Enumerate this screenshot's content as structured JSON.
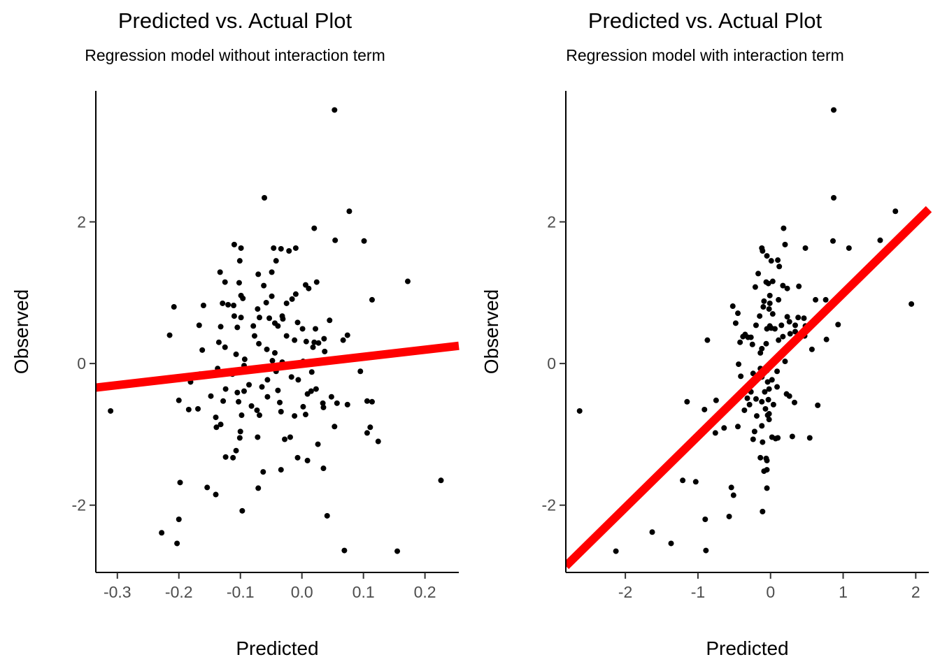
{
  "chart_data": [
    {
      "type": "scatter",
      "title": "Predicted vs. Actual Plot",
      "subtitle": "Regression model without interaction term",
      "xlabel": "Predicted",
      "ylabel": "Observed",
      "xlim": [
        -0.335,
        0.255
      ],
      "ylim": [
        -2.95,
        3.85
      ],
      "xticks": [
        {
          "value": -0.3,
          "label": "-0.3"
        },
        {
          "value": -0.2,
          "label": "-0.2"
        },
        {
          "value": -0.1,
          "label": "-0.1"
        },
        {
          "value": 0.0,
          "label": "0.0"
        },
        {
          "value": 0.1,
          "label": "0.1"
        },
        {
          "value": 0.2,
          "label": "0.2"
        }
      ],
      "yticks": [
        {
          "value": -2,
          "label": "-2"
        },
        {
          "value": 0,
          "label": "0"
        },
        {
          "value": 2,
          "label": "2"
        }
      ],
      "grid": false,
      "fit_line": {
        "x": [
          -0.335,
          0.255
        ],
        "y": [
          -0.34,
          0.25
        ],
        "color": "#ff0000"
      },
      "point_color": "#000000",
      "points": [
        [
          0.053,
          3.58
        ],
        [
          -0.061,
          2.34
        ],
        [
          0.077,
          2.15
        ],
        [
          0.02,
          1.91
        ],
        [
          0.054,
          1.74
        ],
        [
          0.101,
          1.73
        ],
        [
          -0.11,
          1.68
        ],
        [
          -0.099,
          1.63
        ],
        [
          -0.046,
          1.63
        ],
        [
          -0.021,
          1.59
        ],
        [
          -0.034,
          1.62
        ],
        [
          -0.01,
          1.63
        ],
        [
          -0.101,
          1.45
        ],
        [
          -0.049,
          1.29
        ],
        [
          -0.042,
          1.45
        ],
        [
          -0.133,
          1.29
        ],
        [
          0.172,
          1.16
        ],
        [
          -0.125,
          1.15
        ],
        [
          -0.102,
          1.14
        ],
        [
          0.024,
          1.15
        ],
        [
          0.006,
          1.11
        ],
        [
          0.011,
          1.06
        ],
        [
          -0.062,
          1.1
        ],
        [
          -0.071,
          1.26
        ],
        [
          -0.01,
          0.98
        ],
        [
          -0.099,
          0.96
        ],
        [
          -0.111,
          0.82
        ],
        [
          -0.129,
          0.85
        ],
        [
          -0.096,
          0.92
        ],
        [
          -0.049,
          0.95
        ],
        [
          -0.058,
          0.86
        ],
        [
          0.114,
          0.9
        ],
        [
          -0.016,
          0.91
        ],
        [
          -0.025,
          0.85
        ],
        [
          -0.16,
          0.82
        ],
        [
          -0.208,
          0.8
        ],
        [
          -0.12,
          0.83
        ],
        [
          -0.072,
          0.77
        ],
        [
          -0.031,
          0.63
        ],
        [
          -0.044,
          0.57
        ],
        [
          -0.11,
          0.67
        ],
        [
          -0.099,
          0.65
        ],
        [
          -0.069,
          0.65
        ],
        [
          -0.053,
          0.64
        ],
        [
          -0.032,
          0.67
        ],
        [
          -0.007,
          0.58
        ],
        [
          0.045,
          0.61
        ],
        [
          -0.167,
          0.54
        ],
        [
          -0.132,
          0.52
        ],
        [
          -0.105,
          0.51
        ],
        [
          -0.079,
          0.53
        ],
        [
          -0.039,
          0.53
        ],
        [
          0.001,
          0.49
        ],
        [
          0.022,
          0.49
        ],
        [
          -0.215,
          0.4
        ],
        [
          -0.077,
          0.39
        ],
        [
          0.074,
          0.4
        ],
        [
          0.067,
          0.33
        ],
        [
          0.036,
          0.35
        ],
        [
          0.02,
          0.3
        ],
        [
          0.027,
          0.29
        ],
        [
          0.007,
          0.31
        ],
        [
          -0.025,
          0.39
        ],
        [
          -0.012,
          0.33
        ],
        [
          -0.07,
          0.28
        ],
        [
          -0.057,
          0.2
        ],
        [
          -0.044,
          0.15
        ],
        [
          -0.135,
          0.3
        ],
        [
          -0.125,
          0.23
        ],
        [
          -0.162,
          0.19
        ],
        [
          -0.107,
          0.13
        ],
        [
          0.018,
          0.23
        ],
        [
          0.037,
          0.17
        ],
        [
          -0.093,
          0.06
        ],
        [
          -0.048,
          0.04
        ],
        [
          0.002,
          0.03
        ],
        [
          -0.032,
          0.02
        ],
        [
          -0.094,
          -0.03
        ],
        [
          -0.063,
          -0.05
        ],
        [
          -0.137,
          -0.07
        ],
        [
          0.095,
          -0.11
        ],
        [
          -0.113,
          -0.15
        ],
        [
          -0.118,
          -0.14
        ],
        [
          -0.042,
          -0.11
        ],
        [
          0.016,
          -0.12
        ],
        [
          -0.017,
          -0.19
        ],
        [
          -0.006,
          -0.23
        ],
        [
          -0.056,
          -0.23
        ],
        [
          -0.166,
          -0.15
        ],
        [
          -0.181,
          -0.26
        ],
        [
          -0.086,
          -0.3
        ],
        [
          -0.124,
          -0.36
        ],
        [
          -0.105,
          -0.41
        ],
        [
          -0.094,
          -0.39
        ],
        [
          -0.065,
          -0.33
        ],
        [
          -0.039,
          -0.38
        ],
        [
          -0.056,
          -0.47
        ],
        [
          0.015,
          -0.39
        ],
        [
          0.023,
          -0.36
        ],
        [
          0.009,
          -0.43
        ],
        [
          0.048,
          -0.47
        ],
        [
          0.034,
          -0.56
        ],
        [
          -0.148,
          -0.46
        ],
        [
          -0.128,
          -0.53
        ],
        [
          -0.103,
          -0.54
        ],
        [
          -0.082,
          -0.6
        ],
        [
          -0.036,
          -0.55
        ],
        [
          0.002,
          -0.61
        ],
        [
          0.057,
          -0.56
        ],
        [
          0.106,
          -0.53
        ],
        [
          0.114,
          -0.54
        ],
        [
          0.074,
          -0.58
        ],
        [
          0.035,
          -0.62
        ],
        [
          -0.2,
          -0.52
        ],
        [
          -0.169,
          -0.64
        ],
        [
          -0.184,
          -0.65
        ],
        [
          -0.073,
          -0.66
        ],
        [
          -0.034,
          -0.68
        ],
        [
          -0.012,
          -0.74
        ],
        [
          0.006,
          -0.72
        ],
        [
          -0.14,
          -0.76
        ],
        [
          -0.098,
          -0.73
        ],
        [
          -0.069,
          -0.73
        ],
        [
          -0.311,
          -0.67
        ],
        [
          -0.132,
          -0.86
        ],
        [
          -0.139,
          -0.9
        ],
        [
          -0.1,
          -0.96
        ],
        [
          0.053,
          -0.89
        ],
        [
          0.111,
          -0.9
        ],
        [
          0.106,
          -0.98
        ],
        [
          -0.072,
          -1.04
        ],
        [
          -0.028,
          -1.07
        ],
        [
          -0.019,
          -1.04
        ],
        [
          -0.101,
          -1.05
        ],
        [
          0.124,
          -1.1
        ],
        [
          -0.107,
          -1.23
        ],
        [
          0.026,
          -1.14
        ],
        [
          -0.124,
          -1.32
        ],
        [
          -0.112,
          -1.33
        ],
        [
          -0.007,
          -1.33
        ],
        [
          0.009,
          -1.37
        ],
        [
          -0.034,
          -1.5
        ],
        [
          -0.063,
          -1.53
        ],
        [
          0.035,
          -1.48
        ],
        [
          -0.198,
          -1.68
        ],
        [
          -0.154,
          -1.75
        ],
        [
          -0.071,
          -1.76
        ],
        [
          -0.14,
          -1.85
        ],
        [
          0.226,
          -1.65
        ],
        [
          -0.097,
          -2.08
        ],
        [
          0.041,
          -2.15
        ],
        [
          -0.2,
          -2.2
        ],
        [
          -0.228,
          -2.39
        ],
        [
          -0.203,
          -2.54
        ],
        [
          0.069,
          -2.64
        ],
        [
          0.155,
          -2.65
        ]
      ]
    },
    {
      "type": "scatter",
      "title": "Predicted vs. Actual Plot",
      "subtitle": "Regression model with interaction term",
      "xlabel": "Predicted",
      "ylabel": "Observed",
      "xlim": [
        -2.82,
        2.18
      ],
      "ylim": [
        -2.95,
        3.85
      ],
      "xticks": [
        {
          "value": -2,
          "label": "-2"
        },
        {
          "value": -1,
          "label": "-1"
        },
        {
          "value": 0,
          "label": "0"
        },
        {
          "value": 1,
          "label": "1"
        },
        {
          "value": 2,
          "label": "2"
        }
      ],
      "yticks": [
        {
          "value": -2,
          "label": "-2"
        },
        {
          "value": 0,
          "label": "0"
        },
        {
          "value": 2,
          "label": "2"
        }
      ],
      "grid": false,
      "fit_line": {
        "x": [
          -2.82,
          2.18
        ],
        "y": [
          -2.86,
          2.18
        ],
        "color": "#ff0000"
      },
      "point_color": "#000000",
      "points": [
        [
          0.87,
          3.58
        ],
        [
          0.87,
          2.34
        ],
        [
          1.72,
          2.15
        ],
        [
          0.18,
          1.91
        ],
        [
          1.51,
          1.74
        ],
        [
          0.86,
          1.73
        ],
        [
          1.08,
          1.63
        ],
        [
          0.48,
          1.63
        ],
        [
          0.2,
          1.68
        ],
        [
          -0.12,
          1.63
        ],
        [
          -0.11,
          1.59
        ],
        [
          -0.05,
          1.52
        ],
        [
          0.01,
          1.45
        ],
        [
          0.1,
          1.46
        ],
        [
          -0.17,
          1.27
        ],
        [
          0.12,
          1.37
        ],
        [
          -0.06,
          1.15
        ],
        [
          0.03,
          1.16
        ],
        [
          -0.03,
          1.13
        ],
        [
          0.17,
          1.1
        ],
        [
          0.39,
          1.09
        ],
        [
          -0.21,
          1.08
        ],
        [
          0.23,
          1.06
        ],
        [
          -0.01,
          0.96
        ],
        [
          0.11,
          0.9
        ],
        [
          0.62,
          0.9
        ],
        [
          0.76,
          0.9
        ],
        [
          -0.09,
          0.88
        ],
        [
          -0.01,
          0.85
        ],
        [
          1.94,
          0.84
        ],
        [
          -0.52,
          0.81
        ],
        [
          -0.1,
          0.8
        ],
        [
          -0.02,
          0.77
        ],
        [
          0.03,
          0.7
        ],
        [
          0.23,
          0.66
        ],
        [
          0.38,
          0.65
        ],
        [
          -0.45,
          0.71
        ],
        [
          -0.15,
          0.67
        ],
        [
          0.46,
          0.64
        ],
        [
          0.26,
          0.59
        ],
        [
          -0.48,
          0.57
        ],
        [
          -0.2,
          0.54
        ],
        [
          -0.01,
          0.53
        ],
        [
          0.15,
          0.54
        ],
        [
          0.34,
          0.54
        ],
        [
          0.48,
          0.53
        ],
        [
          0.93,
          0.55
        ],
        [
          -0.05,
          0.49
        ],
        [
          0.01,
          0.5
        ],
        [
          0.06,
          0.49
        ],
        [
          0.34,
          0.45
        ],
        [
          0.27,
          0.42
        ],
        [
          -0.35,
          0.41
        ],
        [
          -0.27,
          0.37
        ],
        [
          -0.38,
          0.38
        ],
        [
          -0.31,
          0.37
        ],
        [
          0.17,
          0.38
        ],
        [
          0.47,
          0.39
        ],
        [
          0.11,
          0.33
        ],
        [
          -0.42,
          0.3
        ],
        [
          -0.25,
          0.27
        ],
        [
          -0.06,
          0.28
        ],
        [
          0.77,
          0.34
        ],
        [
          -0.87,
          0.33
        ],
        [
          -0.12,
          0.21
        ],
        [
          0.57,
          0.2
        ],
        [
          -0.14,
          0.15
        ],
        [
          0.09,
          0.06
        ],
        [
          0.2,
          0.03
        ],
        [
          -0.44,
          -0.01
        ],
        [
          -0.14,
          -0.07
        ],
        [
          -0.05,
          -0.1
        ],
        [
          0.09,
          -0.11
        ],
        [
          -0.24,
          -0.14
        ],
        [
          -0.41,
          -0.18
        ],
        [
          -0.12,
          -0.19
        ],
        [
          0.02,
          -0.23
        ],
        [
          -0.04,
          -0.26
        ],
        [
          -0.26,
          -0.3
        ],
        [
          0.09,
          -0.33
        ],
        [
          -0.27,
          -0.4
        ],
        [
          -0.08,
          -0.4
        ],
        [
          -0.02,
          -0.36
        ],
        [
          0.22,
          -0.43
        ],
        [
          0.26,
          -0.46
        ],
        [
          -0.32,
          -0.49
        ],
        [
          -0.2,
          -0.5
        ],
        [
          -0.12,
          -0.54
        ],
        [
          -0.03,
          -0.51
        ],
        [
          0.33,
          -0.55
        ],
        [
          0.04,
          -0.58
        ],
        [
          -0.75,
          -0.52
        ],
        [
          -1.15,
          -0.54
        ],
        [
          -0.29,
          -0.58
        ],
        [
          0.65,
          -0.59
        ],
        [
          -0.36,
          -0.66
        ],
        [
          -0.07,
          -0.64
        ],
        [
          -0.02,
          -0.71
        ],
        [
          -0.91,
          -0.65
        ],
        [
          -2.63,
          -0.67
        ],
        [
          -0.19,
          -0.74
        ],
        [
          -0.04,
          -0.73
        ],
        [
          -0.02,
          -0.79
        ],
        [
          -0.12,
          -0.88
        ],
        [
          -0.45,
          -0.89
        ],
        [
          -0.64,
          -0.91
        ],
        [
          -0.22,
          -0.96
        ],
        [
          -0.76,
          -0.98
        ],
        [
          0.3,
          -1.03
        ],
        [
          0.54,
          -1.05
        ],
        [
          0.02,
          -1.04
        ],
        [
          0.1,
          -1.05
        ],
        [
          -0.24,
          -1.07
        ],
        [
          0.07,
          -1.06
        ],
        [
          -0.11,
          -1.11
        ],
        [
          -0.14,
          -1.33
        ],
        [
          -0.06,
          -1.34
        ],
        [
          -0.05,
          -1.37
        ],
        [
          -0.05,
          -1.5
        ],
        [
          -0.09,
          -1.52
        ],
        [
          -1.21,
          -1.65
        ],
        [
          -1.03,
          -1.67
        ],
        [
          -0.54,
          -1.75
        ],
        [
          -0.05,
          -1.76
        ],
        [
          -0.51,
          -1.86
        ],
        [
          -0.11,
          -2.09
        ],
        [
          -0.57,
          -2.16
        ],
        [
          -0.9,
          -2.2
        ],
        [
          -1.63,
          -2.38
        ],
        [
          -1.37,
          -2.54
        ],
        [
          -0.89,
          -2.64
        ],
        [
          -2.13,
          -2.65
        ]
      ]
    }
  ]
}
